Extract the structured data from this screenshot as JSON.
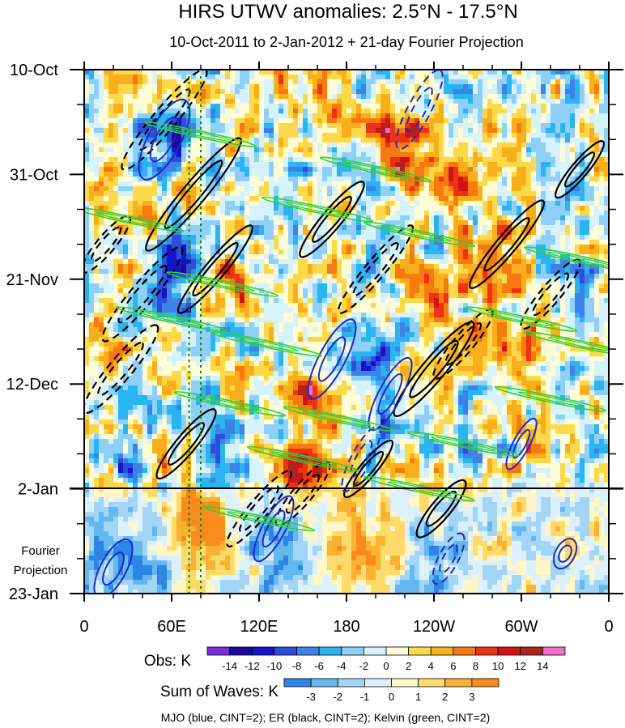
{
  "chart_data": {
    "type": "heatmap",
    "title": "HIRS UTWV anomalies: 2.5°N - 17.5°N",
    "subtitle": "10-Oct-2011 to 2-Jan-2012 + 21-day Fourier Projection",
    "x_ticks": [
      "0",
      "60E",
      "120E",
      "180",
      "120W",
      "60W",
      "0"
    ],
    "x_range_deg_east": [
      0,
      360
    ],
    "y_ticks": [
      "10-Oct",
      "31-Oct",
      "21-Nov",
      "12-Dec",
      "2-Jan",
      "23-Jan"
    ],
    "y_range_days_since_10oct": [
      0,
      105
    ],
    "obs_end_label": "2-Jan",
    "projection_label": [
      "Fourier",
      "Projection"
    ],
    "obs_colorbar": {
      "label": "Obs: K",
      "levels": [
        "-14",
        "-12",
        "-10",
        "-8",
        "-6",
        "-4",
        "-2",
        "0",
        "2",
        "4",
        "6",
        "8",
        "10",
        "12",
        "14"
      ],
      "colors": [
        "#7b2fd8",
        "#1a0a9e",
        "#1414c8",
        "#2a4fd8",
        "#3d82e6",
        "#2ab4f0",
        "#8fd0f8",
        "#d6f3fb",
        "#fffcd6",
        "#fbd94a",
        "#f9ae1c",
        "#f67a10",
        "#ee3214",
        "#d01414",
        "#a8261e",
        "#f070c8"
      ]
    },
    "waves_colorbar": {
      "label": "Sum of Waves: K",
      "levels": [
        "-3",
        "-2",
        "-1",
        "0",
        "1",
        "2",
        "3"
      ],
      "colors": [
        "#2d86e6",
        "#63b8ef",
        "#a3d6f6",
        "#dcf1fb",
        "#fff7c6",
        "#fddb6a",
        "#fbb232",
        "#f88b1a"
      ]
    },
    "contour_legend": "MJO (blue, CINT=2); ER (black, CINT=2); Kelvin (green, CINT=2)",
    "series": [
      {
        "name": "MJO",
        "color": "#1e28c8",
        "cint": 2
      },
      {
        "name": "ER",
        "color": "#000000",
        "cint": 2
      },
      {
        "name": "Kelvin",
        "color": "#2fd22f",
        "cint": 2
      }
    ],
    "reference_longitudes_deg_east": [
      72,
      80
    ]
  }
}
